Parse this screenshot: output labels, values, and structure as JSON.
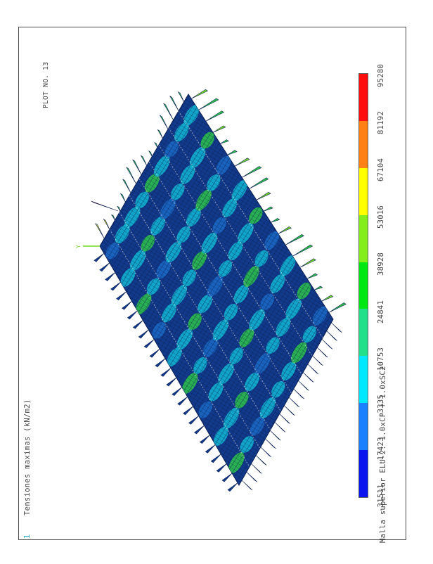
{
  "title": "Tensiones maximas (kN/m2)",
  "subtitle": "Malla superior ELU-2: 1.0xCP + 1.0xSC2",
  "plot_label": "PLOT NO. 13",
  "corner_marker": "1",
  "axis_marker": "Y",
  "legend": {
    "colors": [
      "#0a14ee",
      "#1a80ff",
      "#00e8ff",
      "#22e08a",
      "#00e812",
      "#84ee1c",
      "#ffff00",
      "#ff8014",
      "#ff0e0e"
    ],
    "values": [
      "-31511",
      "-17423",
      "-3335",
      "10753",
      "24841",
      "38928",
      "53016",
      "67104",
      "81192",
      "95280"
    ]
  },
  "mesh_colors": {
    "base": "#123a8c",
    "mid": "#1b6bc8",
    "cyan": "#12b9d6",
    "green": "#2ec44a",
    "light_green": "#74d62a",
    "yellow": "#e6e61a",
    "red": "#e23218",
    "wire": "#111111"
  }
}
